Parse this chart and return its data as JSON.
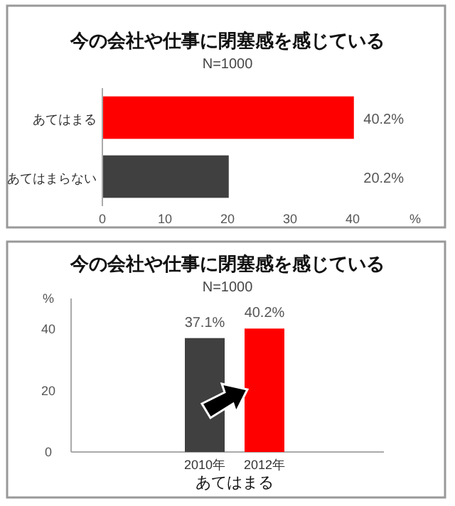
{
  "chart_data": [
    {
      "type": "bar",
      "orientation": "horizontal",
      "title": "今の会社や仕事に閉塞感を感じている",
      "subtitle": "N=1000",
      "categories": [
        "あてはまる",
        "あてはまらない"
      ],
      "values": [
        40.2,
        20.2
      ],
      "colors": [
        "#ff0000",
        "#404040"
      ],
      "value_labels": [
        "40.2%",
        "20.2%"
      ],
      "xlim": [
        0,
        50
      ],
      "xticks": [
        0,
        10,
        20,
        30,
        40,
        {
          "value": 50,
          "label": "%"
        }
      ]
    },
    {
      "type": "bar",
      "title": "今の会社や仕事に閉塞感を感じている",
      "subtitle": "N=1000",
      "xlabel": "あてはまる",
      "categories": [
        "2010年",
        "2012年"
      ],
      "values": [
        37.1,
        40.2
      ],
      "colors": [
        "#404040",
        "#ff0000"
      ],
      "value_labels": [
        "37.1%",
        "40.2%"
      ],
      "ylim": [
        0,
        50
      ],
      "yticks": [
        0,
        20,
        40,
        {
          "value": 50,
          "label": "%"
        }
      ]
    }
  ]
}
